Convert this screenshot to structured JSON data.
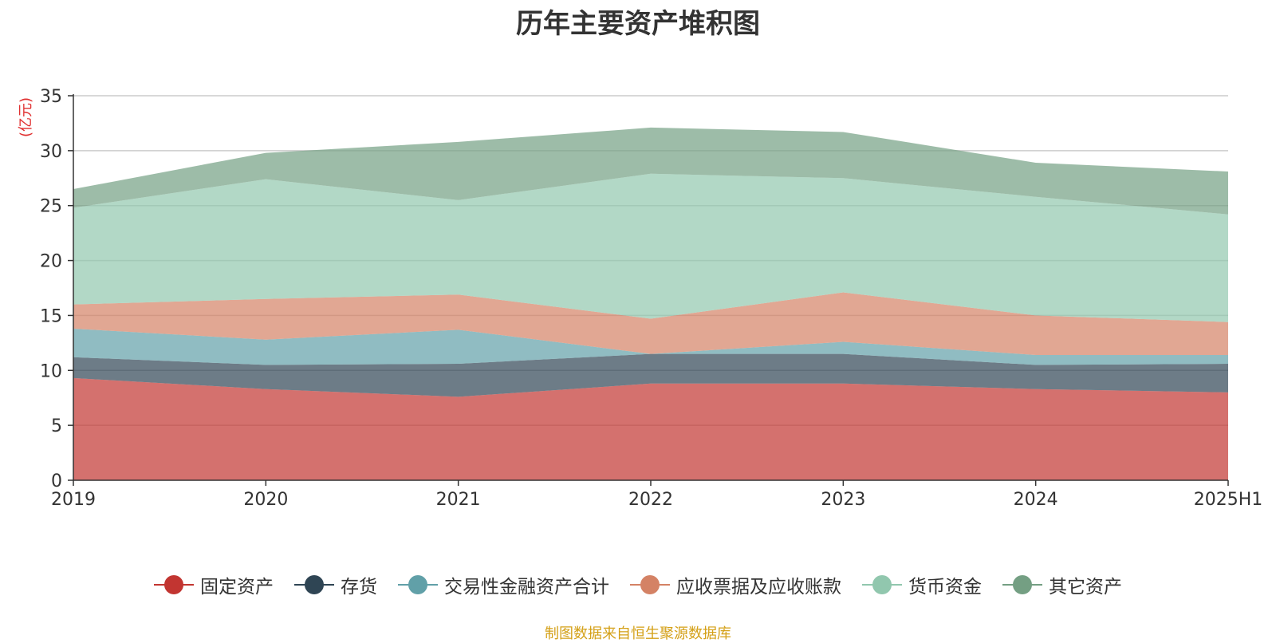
{
  "chart_data": {
    "type": "area",
    "stacked": true,
    "title": "历年主要资产堆积图",
    "ylabel": "(亿元)",
    "xlabel": "",
    "categories": [
      "2019",
      "2020",
      "2021",
      "2022",
      "2023",
      "2024",
      "2025H1"
    ],
    "ylim": [
      0,
      35
    ],
    "yticks": [
      0,
      5,
      10,
      15,
      20,
      25,
      30,
      35
    ],
    "grid": true,
    "legend_position": "bottom",
    "series": [
      {
        "name": "固定资产",
        "color": "#c23531",
        "values": [
          9.3,
          8.3,
          7.6,
          8.8,
          8.8,
          8.3,
          8.0
        ]
      },
      {
        "name": "存货",
        "color": "#2f4554",
        "values": [
          1.9,
          2.2,
          3.0,
          2.7,
          2.7,
          2.2,
          2.6
        ]
      },
      {
        "name": "交易性金融资产合计",
        "color": "#61a0a8",
        "values": [
          2.6,
          2.3,
          3.1,
          0.0,
          1.1,
          0.9,
          0.8
        ]
      },
      {
        "name": "应收票据及应收账款",
        "color": "#d48265",
        "values": [
          2.2,
          3.7,
          3.2,
          3.2,
          4.5,
          3.6,
          3.0
        ]
      },
      {
        "name": "货币资金",
        "color": "#91c7ae",
        "values": [
          8.8,
          10.9,
          8.6,
          13.2,
          10.4,
          10.8,
          9.8
        ]
      },
      {
        "name": "其它资产",
        "color": "#749f83",
        "values": [
          1.7,
          2.4,
          5.3,
          4.2,
          4.2,
          3.1,
          3.9
        ]
      }
    ]
  },
  "source_note": "制图数据来自恒生聚源数据库"
}
